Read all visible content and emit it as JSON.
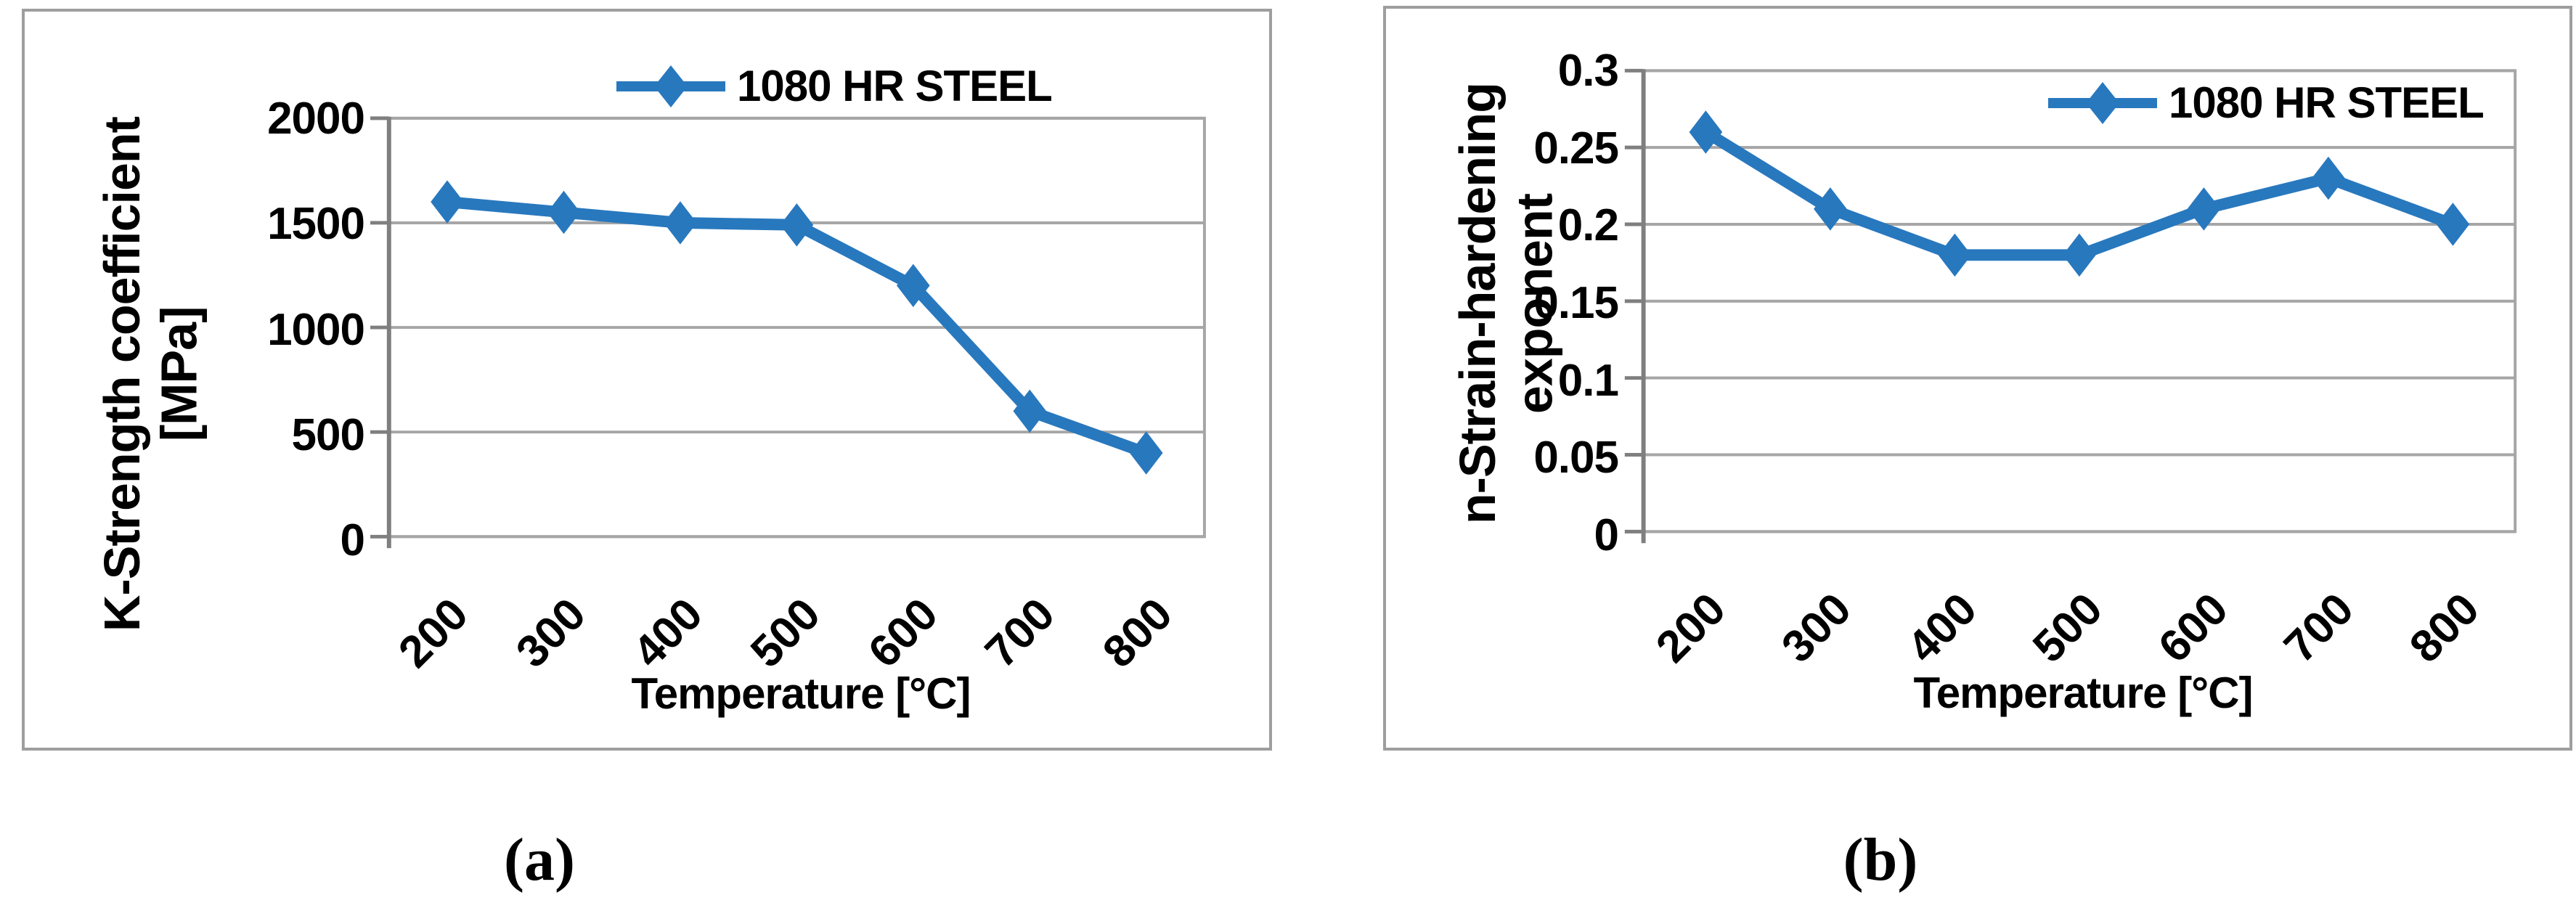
{
  "chart_data": [
    {
      "id": "chart-a",
      "type": "line",
      "caption": "(a)",
      "legend": [
        "1080 HR STEEL"
      ],
      "legend_position": "top-center-inside",
      "categories": [
        200,
        300,
        400,
        500,
        600,
        700,
        800
      ],
      "xtick_labels": [
        "200",
        "300",
        "400",
        "500",
        "600",
        "700",
        "800"
      ],
      "series": [
        {
          "name": "1080 HR STEEL",
          "values": [
            1600,
            1550,
            1500,
            1490,
            1200,
            600,
            400
          ]
        }
      ],
      "xlabel": "Temperature [°C]",
      "ylabel": "K-Strength coefficient [MPa]",
      "ylabel_lines": [
        "K-Strength coefficient",
        "[MPa]"
      ],
      "ytick_labels": [
        "2000",
        "1500",
        "1000",
        "500",
        "0"
      ],
      "ytick_values": [
        2000,
        1500,
        1000,
        500,
        0
      ],
      "ylim": [
        0,
        2000
      ],
      "grid": "horizontal",
      "marker": "diamond",
      "colors": {
        "series": "#2878BE",
        "grid": "#A6A6A6",
        "axis": "#7F7F7F",
        "border": "#9E9E9E",
        "text": "#000000"
      }
    },
    {
      "id": "chart-b",
      "type": "line",
      "caption": "(b)",
      "legend": [
        "1080 HR STEEL"
      ],
      "legend_position": "top-right-inside",
      "categories": [
        200,
        300,
        400,
        500,
        600,
        700,
        800
      ],
      "xtick_labels": [
        "200",
        "300",
        "400",
        "500",
        "600",
        "700",
        "800"
      ],
      "series": [
        {
          "name": "1080 HR STEEL",
          "values": [
            0.26,
            0.21,
            0.18,
            0.18,
            0.21,
            0.23,
            0.2
          ]
        }
      ],
      "xlabel": "Temperature [°C]",
      "ylabel": "n-Strain-hardening exponent",
      "ylabel_lines": [
        "n-Strain-hardening",
        "exponent"
      ],
      "ytick_labels": [
        "0.3",
        "0.25",
        "0.2",
        "0.15",
        "0.1",
        "0.05",
        "0"
      ],
      "ytick_values": [
        0.3,
        0.25,
        0.2,
        0.15,
        0.1,
        0.05,
        0
      ],
      "ylim": [
        0,
        0.3
      ],
      "grid": "horizontal",
      "marker": "diamond",
      "colors": {
        "series": "#2878BE",
        "grid": "#A6A6A6",
        "axis": "#7F7F7F",
        "border": "#9E9E9E",
        "text": "#000000"
      }
    }
  ]
}
